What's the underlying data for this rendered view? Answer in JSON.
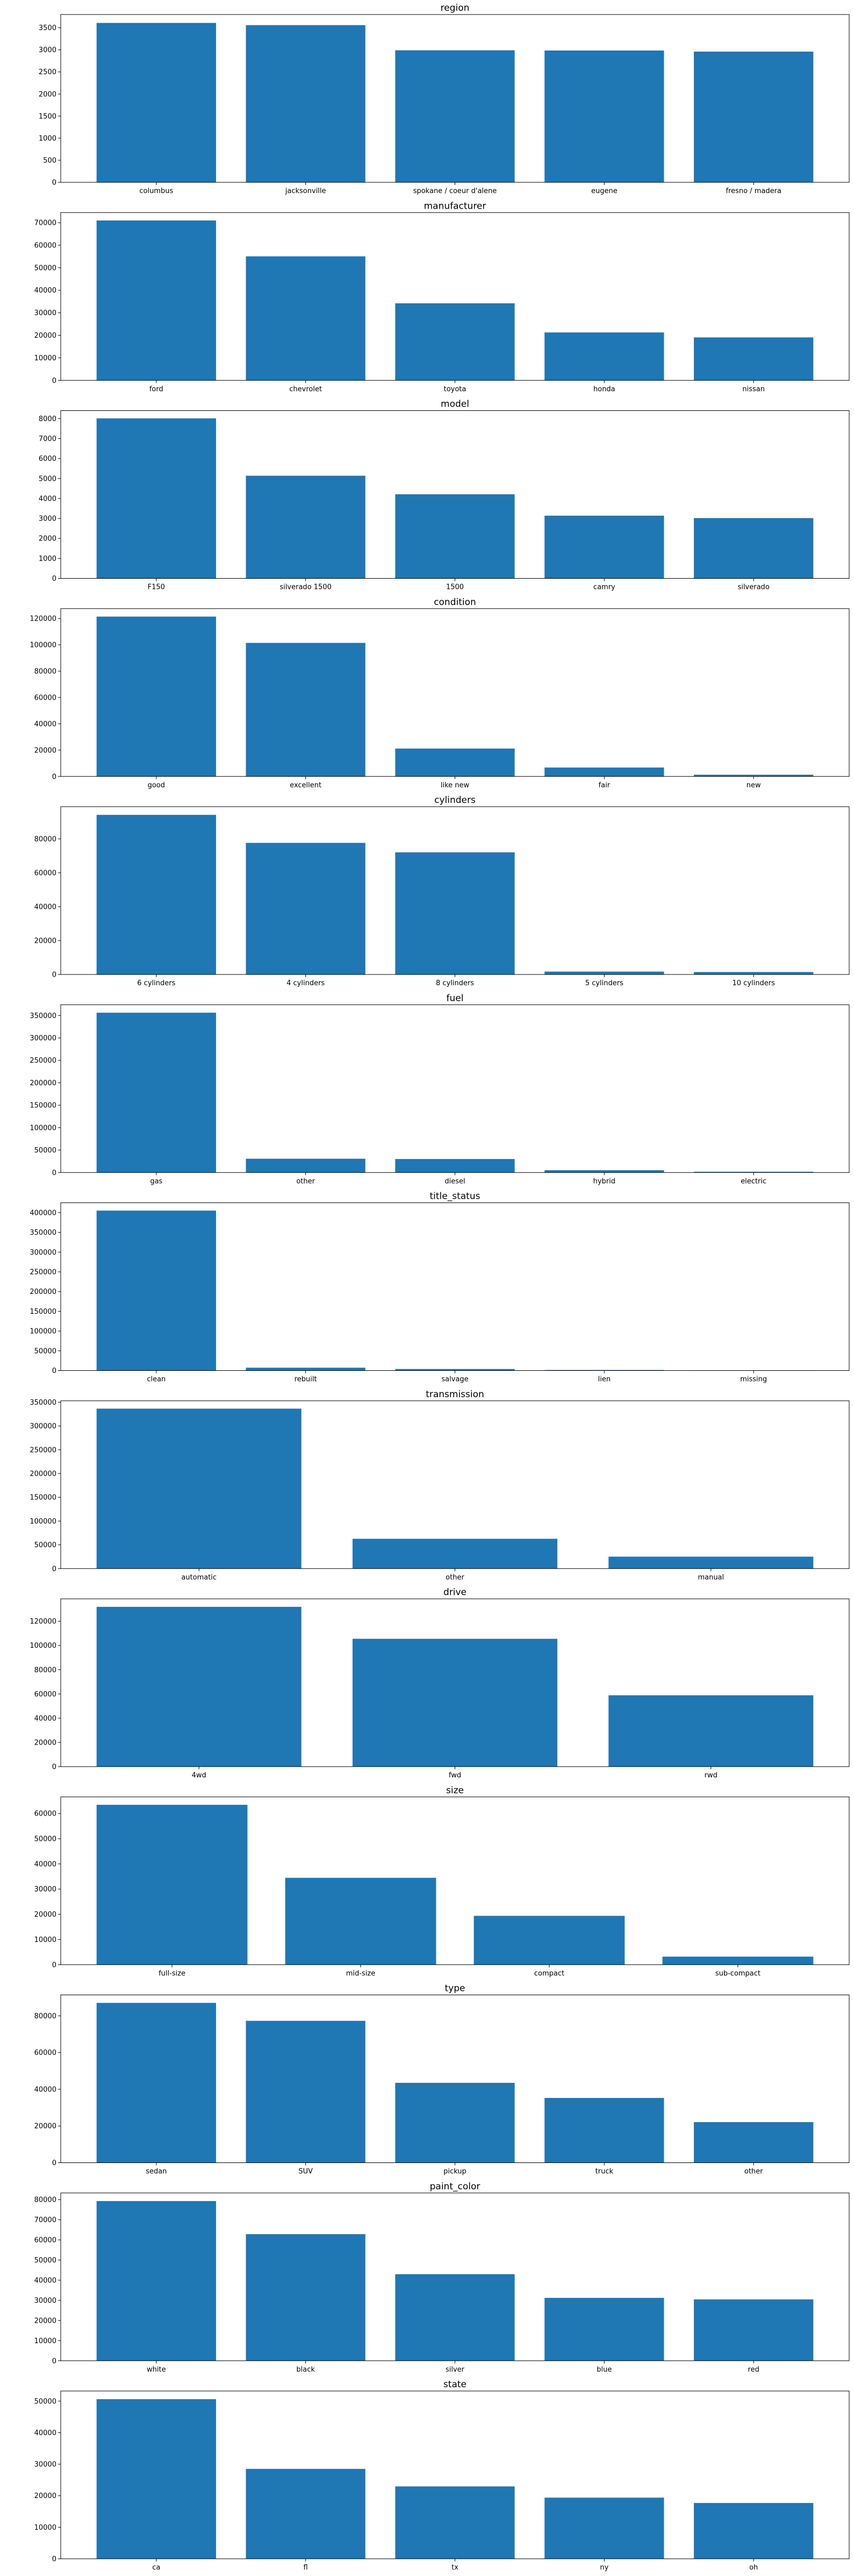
{
  "chart_data": [
    {
      "type": "bar",
      "title": "region",
      "categories": [
        "columbus",
        "jacksonville",
        "spokane / coeur d'alene",
        "eugene",
        "fresno / madera"
      ],
      "values": [
        3610,
        3560,
        2990,
        2985,
        2960
      ],
      "ylim": [
        0,
        3800
      ],
      "yticks": [
        0,
        500,
        1000,
        1500,
        2000,
        2500,
        3000,
        3500
      ],
      "color": "#1f77b4"
    },
    {
      "type": "bar",
      "title": "manufacturer",
      "categories": [
        "ford",
        "chevrolet",
        "toyota",
        "honda",
        "nissan"
      ],
      "values": [
        70980,
        55060,
        34200,
        21270,
        19070
      ],
      "ylim": [
        0,
        74500
      ],
      "yticks": [
        0,
        10000,
        20000,
        30000,
        40000,
        50000,
        60000,
        70000
      ],
      "color": "#1f77b4"
    },
    {
      "type": "bar",
      "title": "model",
      "categories": [
        "F150",
        "silverado 1500",
        "1500",
        "camry",
        "silverado"
      ],
      "values": [
        8010,
        5140,
        4210,
        3140,
        3020
      ],
      "ylim": [
        0,
        8400
      ],
      "yticks": [
        0,
        1000,
        2000,
        3000,
        4000,
        5000,
        6000,
        7000,
        8000
      ],
      "color": "#1f77b4"
    },
    {
      "type": "bar",
      "title": "condition",
      "categories": [
        "good",
        "excellent",
        "like new",
        "fair",
        "new"
      ],
      "values": [
        121460,
        101470,
        21180,
        6770,
        1300
      ],
      "ylim": [
        0,
        127500
      ],
      "yticks": [
        0,
        20000,
        40000,
        60000,
        80000,
        100000,
        120000
      ],
      "color": "#1f77b4"
    },
    {
      "type": "bar",
      "title": "cylinders",
      "categories": [
        "6 cylinders",
        "4 cylinders",
        "8 cylinders",
        "5 cylinders",
        "10 cylinders"
      ],
      "values": [
        94170,
        77640,
        72060,
        1710,
        1460
      ],
      "ylim": [
        0,
        99000
      ],
      "yticks": [
        0,
        20000,
        40000,
        60000,
        80000
      ],
      "color": "#1f77b4"
    },
    {
      "type": "bar",
      "title": "fuel",
      "categories": [
        "gas",
        "other",
        "diesel",
        "hybrid",
        "electric"
      ],
      "values": [
        356210,
        30730,
        30060,
        5170,
        1700
      ],
      "ylim": [
        0,
        374000
      ],
      "yticks": [
        0,
        50000,
        100000,
        150000,
        200000,
        250000,
        300000,
        350000
      ],
      "color": "#1f77b4"
    },
    {
      "type": "bar",
      "title": "title_status",
      "categories": [
        "clean",
        "rebuilt",
        "salvage",
        "lien",
        "missing"
      ],
      "values": [
        405120,
        7220,
        3870,
        1420,
        810
      ],
      "ylim": [
        0,
        425000
      ],
      "yticks": [
        0,
        50000,
        100000,
        150000,
        200000,
        250000,
        300000,
        350000,
        400000
      ],
      "color": "#1f77b4"
    },
    {
      "type": "bar",
      "title": "transmission",
      "categories": [
        "automatic",
        "other",
        "manual"
      ],
      "values": [
        336520,
        62680,
        25120
      ],
      "ylim": [
        0,
        353000
      ],
      "yticks": [
        0,
        50000,
        100000,
        150000,
        200000,
        250000,
        300000,
        350000
      ],
      "color": "#1f77b4"
    },
    {
      "type": "bar",
      "title": "drive",
      "categories": [
        "4wd",
        "fwd",
        "rwd"
      ],
      "values": [
        131900,
        105520,
        58890
      ],
      "ylim": [
        0,
        138500
      ],
      "yticks": [
        0,
        20000,
        40000,
        60000,
        80000,
        100000,
        120000
      ],
      "color": "#1f77b4"
    },
    {
      "type": "bar",
      "title": "size",
      "categories": [
        "full-size",
        "mid-size",
        "compact",
        "sub-compact"
      ],
      "values": [
        63460,
        34480,
        19380,
        3190
      ],
      "ylim": [
        0,
        66600
      ],
      "yticks": [
        0,
        10000,
        20000,
        30000,
        40000,
        50000,
        60000
      ],
      "color": "#1f77b4"
    },
    {
      "type": "bar",
      "title": "type",
      "categories": [
        "sedan",
        "SUV",
        "pickup",
        "truck",
        "other"
      ],
      "values": [
        87060,
        77280,
        43510,
        35280,
        22110
      ],
      "ylim": [
        0,
        91400
      ],
      "yticks": [
        0,
        20000,
        40000,
        60000,
        80000
      ],
      "color": "#1f77b4"
    },
    {
      "type": "bar",
      "title": "paint_color",
      "categories": [
        "white",
        "black",
        "silver",
        "blue",
        "red"
      ],
      "values": [
        79290,
        62860,
        42970,
        31220,
        30470
      ],
      "ylim": [
        0,
        83300
      ],
      "yticks": [
        0,
        10000,
        20000,
        30000,
        40000,
        50000,
        60000,
        70000,
        80000
      ],
      "color": "#1f77b4"
    },
    {
      "type": "bar",
      "title": "state",
      "categories": [
        "ca",
        "fl",
        "tx",
        "ny",
        "oh"
      ],
      "values": [
        50610,
        28510,
        22950,
        19390,
        17700
      ],
      "ylim": [
        0,
        53200
      ],
      "yticks": [
        0,
        10000,
        20000,
        30000,
        40000,
        50000
      ],
      "color": "#1f77b4"
    }
  ]
}
